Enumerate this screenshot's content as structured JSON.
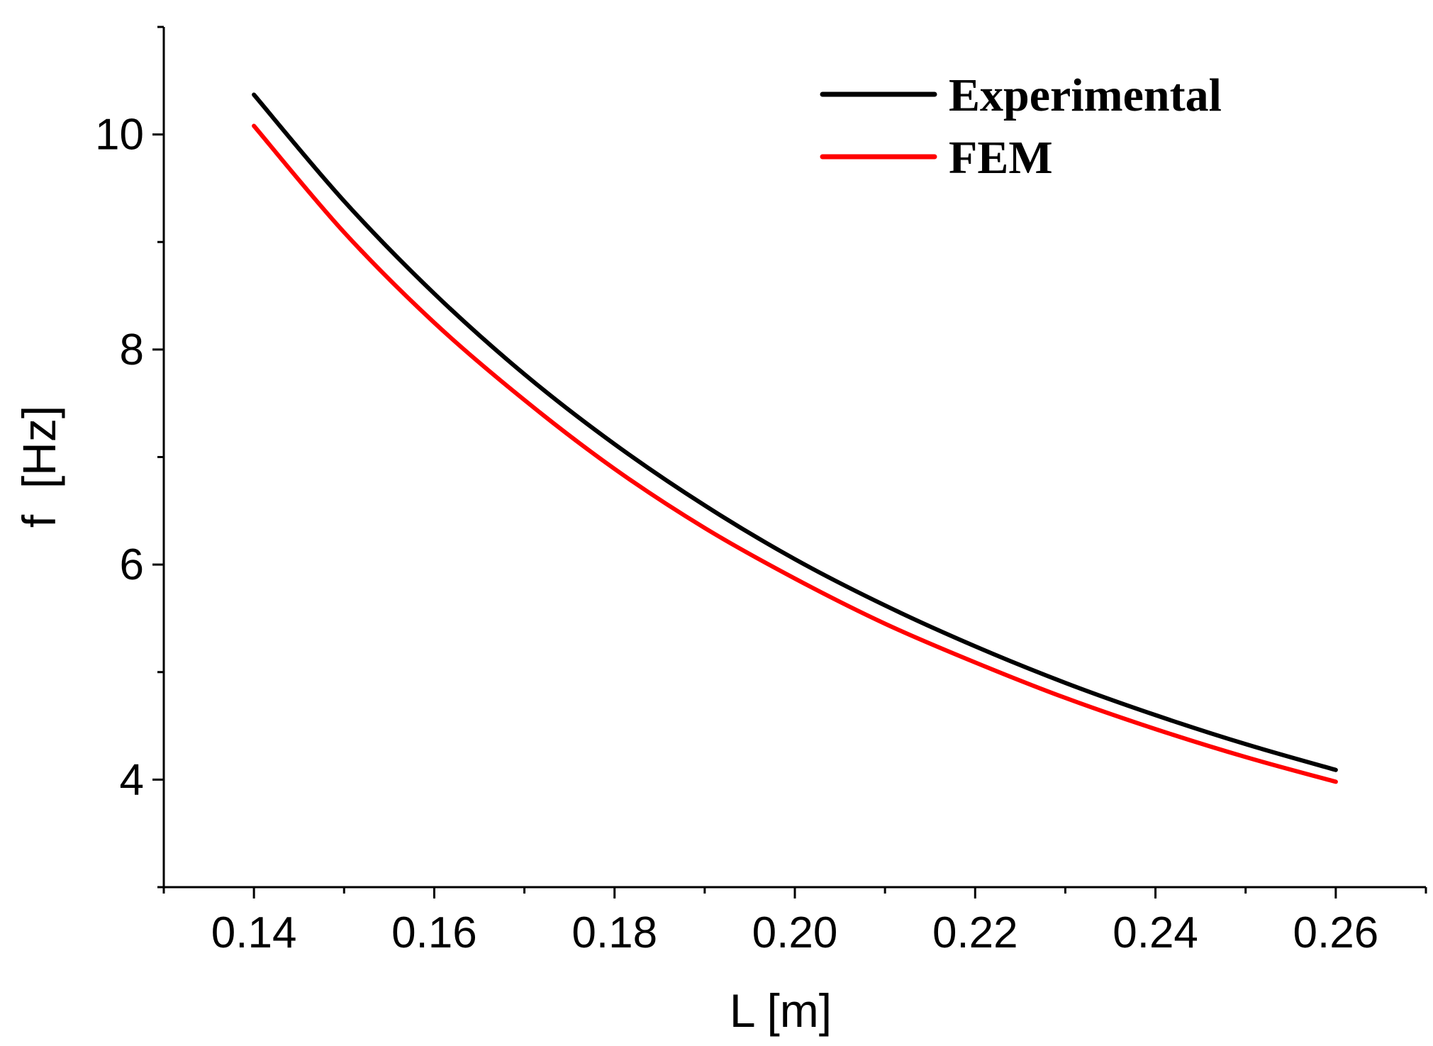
{
  "chart_data": {
    "type": "line",
    "title": "",
    "xlabel": "L [m]",
    "ylabel": "f  [Hz]",
    "xlim": [
      0.13,
      0.27
    ],
    "ylim": [
      3.0,
      11.0
    ],
    "xticks": [
      0.14,
      0.16,
      0.18,
      0.2,
      0.22,
      0.24,
      0.26
    ],
    "xtick_labels": [
      "0.14",
      "0.16",
      "0.18",
      "0.20",
      "0.22",
      "0.24",
      "0.26"
    ],
    "yticks": [
      4,
      6,
      8,
      10
    ],
    "ytick_labels": [
      "4",
      "6",
      "8",
      "10"
    ],
    "grid": false,
    "legend_position": "top-right",
    "x": [
      0.14,
      0.15,
      0.16,
      0.17,
      0.18,
      0.19,
      0.2,
      0.21,
      0.22,
      0.23,
      0.24,
      0.25,
      0.26
    ],
    "series": [
      {
        "name": "Experimental",
        "color": "#000000",
        "values": [
          10.37,
          9.38,
          8.52,
          7.77,
          7.12,
          6.55,
          6.05,
          5.62,
          5.24,
          4.9,
          4.6,
          4.33,
          4.09
        ]
      },
      {
        "name": "FEM",
        "color": "#ff0000",
        "values": [
          10.08,
          9.09,
          8.25,
          7.53,
          6.89,
          6.34,
          5.87,
          5.45,
          5.09,
          4.76,
          4.47,
          4.21,
          3.98
        ]
      }
    ]
  }
}
